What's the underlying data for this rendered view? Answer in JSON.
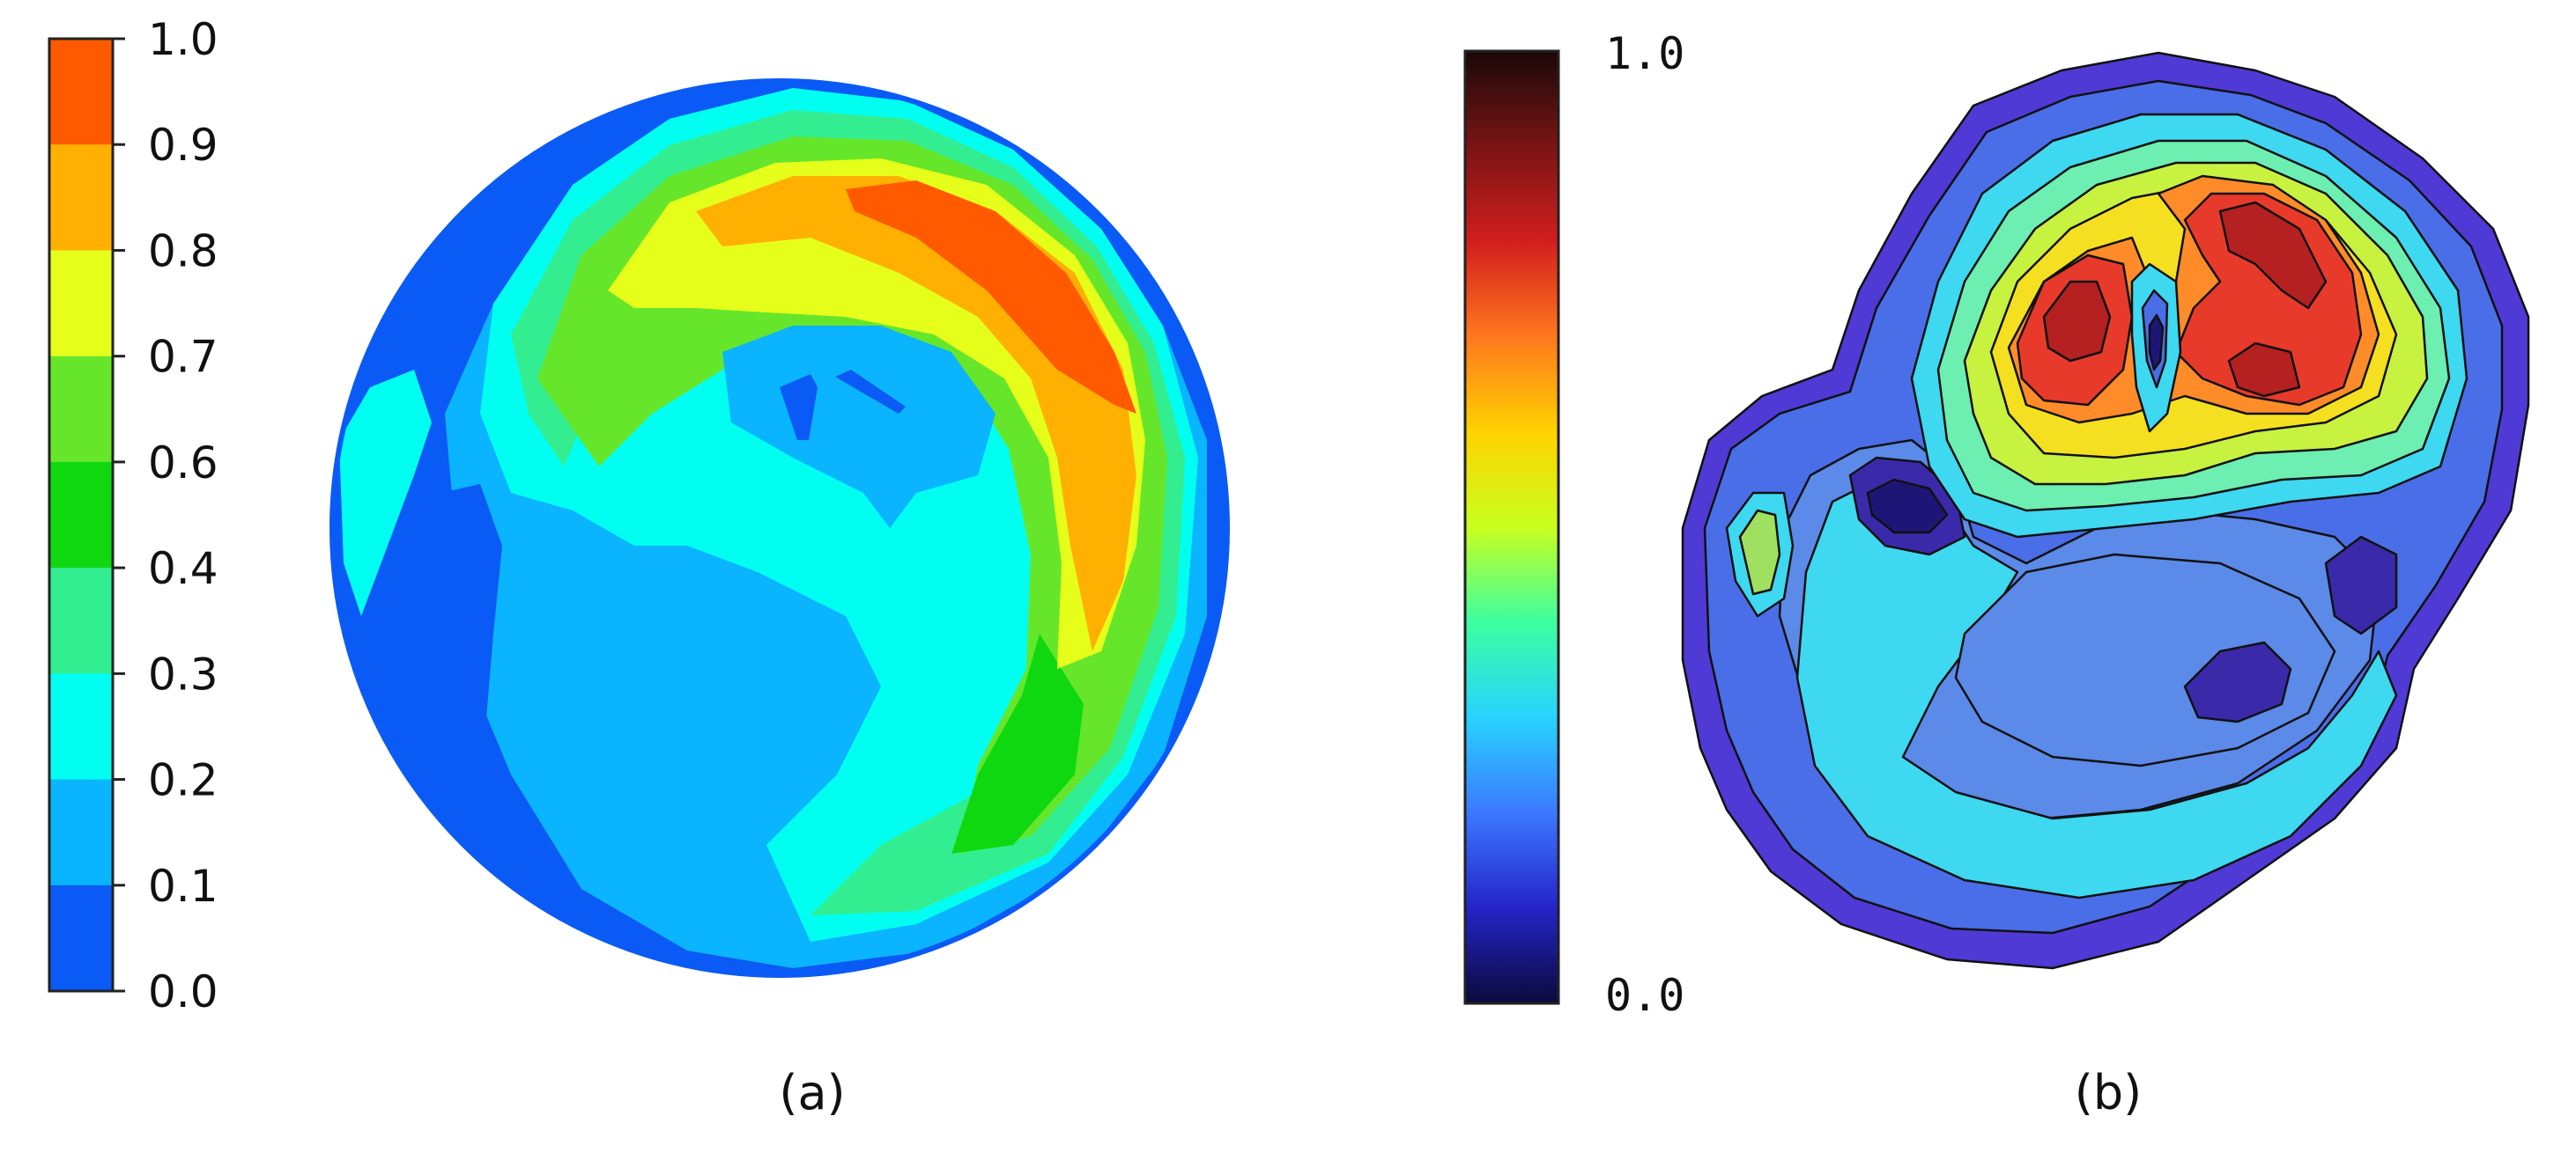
{
  "panel_a": {
    "caption": "(a)",
    "colorbar_ticks": [
      "1.0",
      "0.9",
      "0.8",
      "0.7",
      "0.6",
      "0.4",
      "0.3",
      "0.2",
      "0.1",
      "0.0"
    ],
    "colorbar_colors": [
      "#FF5A00",
      "#FFB000",
      "#E6FF1A",
      "#66E62A",
      "#10D810",
      "#33EE90",
      "#00FFF0",
      "#0AB4FF",
      "#0A5AF5"
    ]
  },
  "panel_b": {
    "caption": "(b)",
    "colorbar_max_label": "1.0",
    "colorbar_min_label": "0.0",
    "colormap_stops": [
      "#0a0a3c",
      "#2424c8",
      "#3c78ff",
      "#28d2ff",
      "#3cffa0",
      "#c8ff1e",
      "#ffd200",
      "#ff781e",
      "#d21e1e",
      "#7a1414",
      "#1a0808"
    ]
  }
}
